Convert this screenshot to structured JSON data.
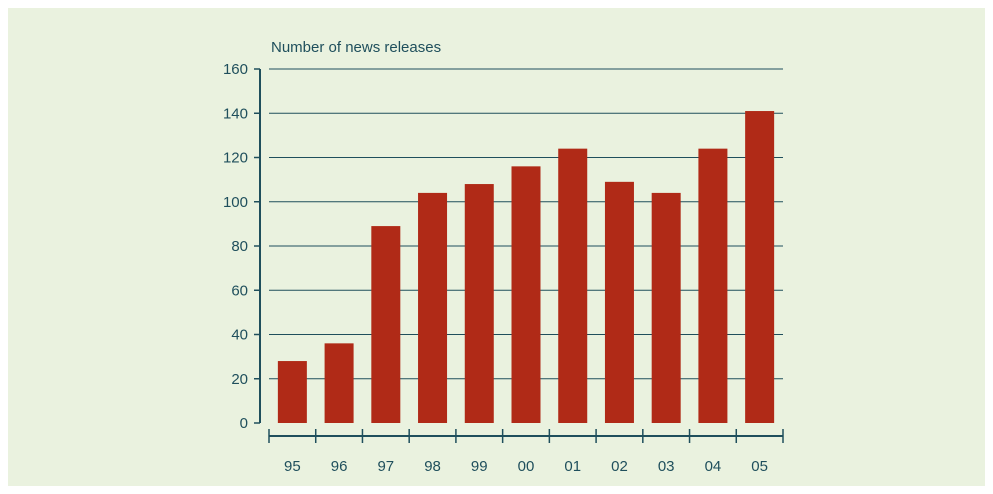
{
  "chart_data": {
    "type": "bar",
    "title": "",
    "xlabel": "",
    "ylabel": "Number of news releases",
    "categories": [
      "95",
      "96",
      "97",
      "98",
      "99",
      "00",
      "01",
      "02",
      "03",
      "04",
      "05"
    ],
    "values": [
      28,
      36,
      89,
      104,
      108,
      116,
      124,
      109,
      104,
      124,
      141
    ],
    "ylim": [
      0,
      160
    ],
    "yticks": [
      0,
      20,
      40,
      60,
      80,
      100,
      120,
      140,
      160
    ],
    "grid": true,
    "legend": "none"
  },
  "colors": {
    "background": "#eaf2df",
    "bar": "#b02a17",
    "axis": "#1f4f5c",
    "grid": "#1f4f5c"
  }
}
